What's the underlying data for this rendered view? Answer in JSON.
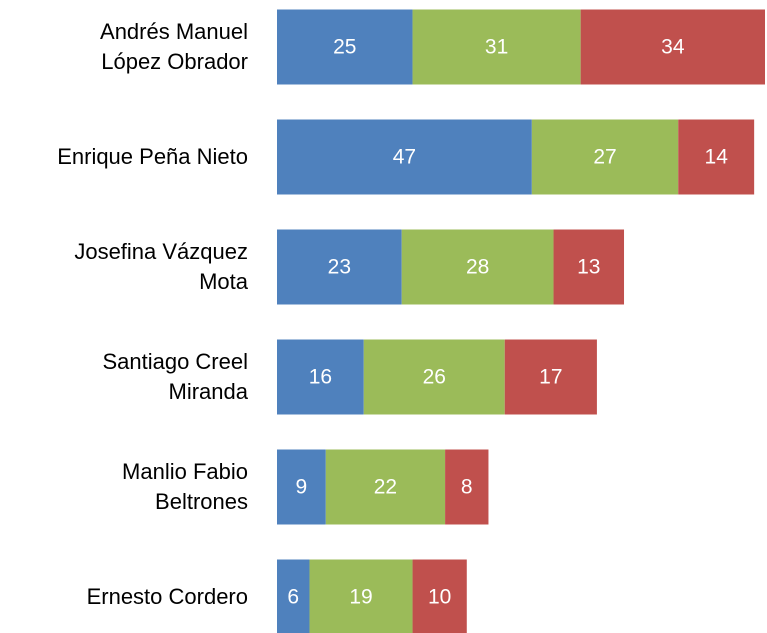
{
  "chart_data": {
    "type": "stacked-bar-horizontal",
    "categories": [
      "Andrés Manuel\nLópez Obrador",
      "Enrique Peña Nieto",
      "Josefina Vázquez\nMota",
      "Santiago Creel\nMiranda",
      "Manlio Fabio\nBeltrones",
      "Ernesto Cordero"
    ],
    "series": [
      {
        "color": "#4f81bd",
        "values": [
          25,
          47,
          23,
          16,
          9,
          6
        ]
      },
      {
        "color": "#9bbb59",
        "values": [
          31,
          27,
          28,
          26,
          22,
          19
        ]
      },
      {
        "color": "#c0504d",
        "values": [
          34,
          14,
          13,
          17,
          8,
          10
        ]
      }
    ],
    "xlim": [
      0,
      90
    ]
  }
}
